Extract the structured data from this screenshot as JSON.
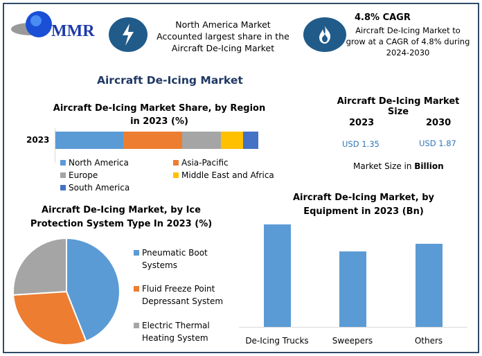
{
  "logo": {
    "text": "MMR"
  },
  "highlight1": {
    "icon": "lightning-icon",
    "text": "North America Market Accounted largest share in the Aircraft De-Icing Market"
  },
  "highlight2": {
    "icon": "flame-icon",
    "title": "4.8% CAGR",
    "text": "Aircraft De-Icing Market to grow at a CAGR of 4.8% during 2024-2030"
  },
  "main_title": "Aircraft De-Icing Market",
  "market_size": {
    "title": "Aircraft De-Icing Market Size",
    "years": [
      {
        "year": "2023",
        "value": "USD 1.35"
      },
      {
        "year": "2030",
        "value": "USD 1.87"
      }
    ],
    "note_prefix": "Market Size in ",
    "note_bold": "Billion"
  },
  "colors": {
    "blue": "#5b9bd5",
    "orange": "#ed7d31",
    "gray": "#a5a5a5",
    "yellow": "#ffc000",
    "darkblue": "#4472c4",
    "title": "#1f3864",
    "value": "#2e75b6"
  },
  "chart_data": [
    {
      "type": "bar",
      "orientation": "horizontal",
      "stacked": true,
      "title": "Aircraft De-Icing Market Share, by Region in 2023 (%)",
      "categories": [
        "2023"
      ],
      "legend": "bottom",
      "series": [
        {
          "name": "North America",
          "values": [
            33.5
          ],
          "color": "#5b9bd5"
        },
        {
          "name": "Asia-Pacific",
          "values": [
            29
          ],
          "color": "#ed7d31"
        },
        {
          "name": "Europe",
          "values": [
            19
          ],
          "color": "#a5a5a5"
        },
        {
          "name": "Middle East and Africa",
          "values": [
            11
          ],
          "color": "#ffc000"
        },
        {
          "name": "South America",
          "values": [
            7.5
          ],
          "color": "#4472c4"
        }
      ]
    },
    {
      "type": "pie",
      "title": "Aircraft De-Icing Market, by Ice Protection System Type In 2023 (%)",
      "legend": "right",
      "slices": [
        {
          "name": "Pneumatic Boot Systems",
          "value": 44,
          "color": "#5b9bd5"
        },
        {
          "name": "Fluid Freeze Point Depressant System",
          "value": 30,
          "color": "#ed7d31"
        },
        {
          "name": "Electric Thermal Heating System",
          "value": 26,
          "color": "#a5a5a5"
        }
      ]
    },
    {
      "type": "bar",
      "title": "Aircraft De-Icing Market, by Equipment in 2023 (Bn)",
      "categories": [
        "De-Icing Trucks",
        "Sweepers",
        "Others"
      ],
      "values": [
        0.53,
        0.39,
        0.43
      ],
      "color": "#5b9bd5",
      "grid": false
    }
  ]
}
